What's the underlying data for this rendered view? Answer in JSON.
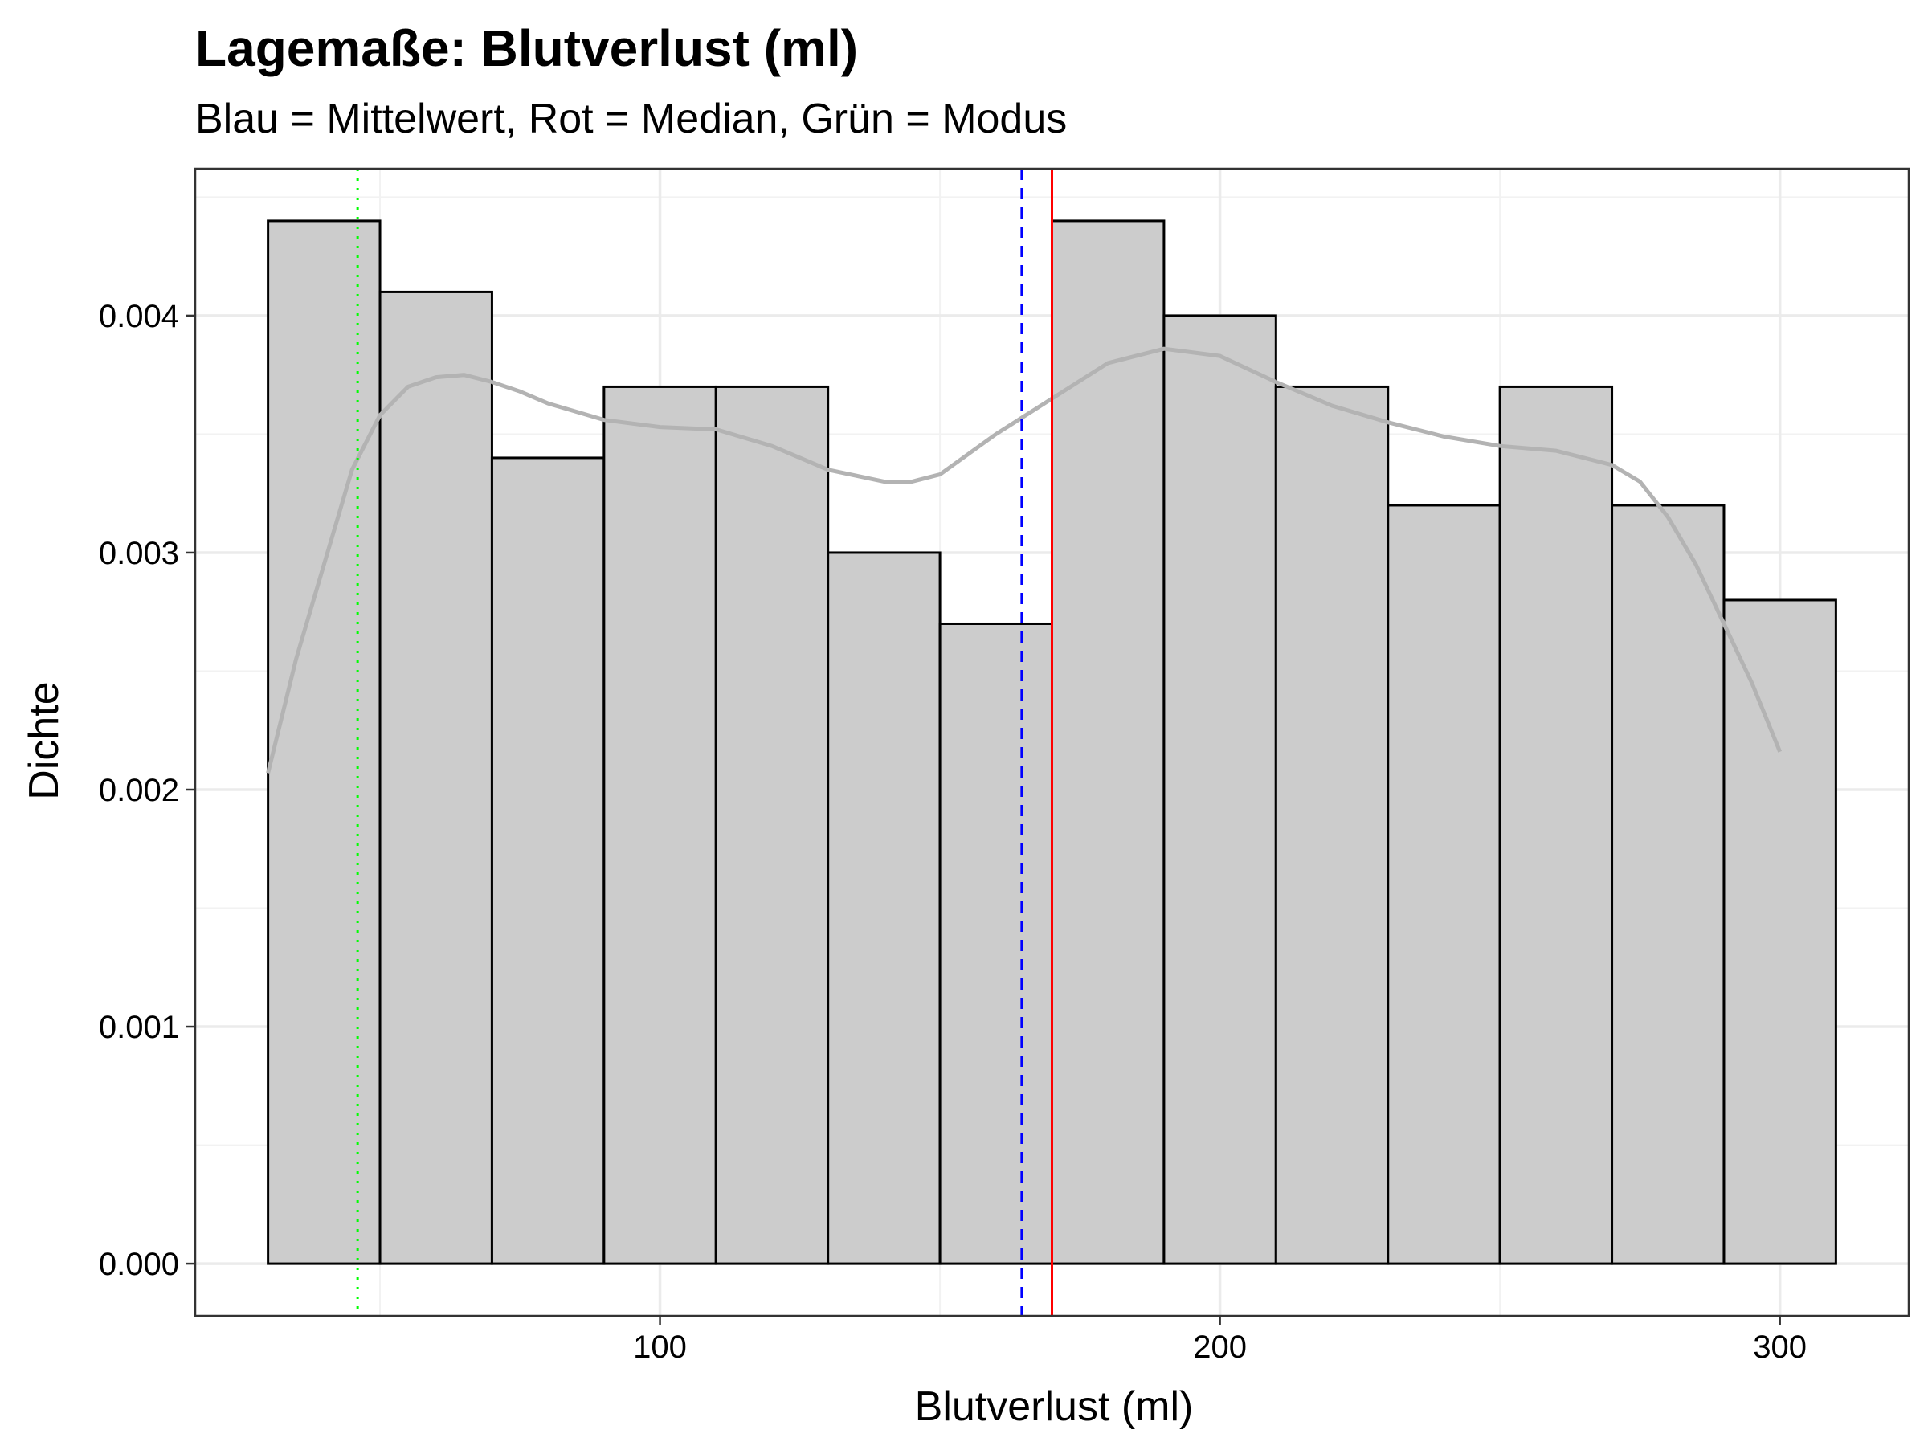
{
  "chart_data": {
    "type": "bar",
    "title": "Lagemaße: Blutverlust (ml)",
    "subtitle": "Blau = Mittelwert, Rot = Median, Grün = Modus",
    "xlabel": "Blutverlust (ml)",
    "ylabel": "Dichte",
    "xlim": [
      17,
      323
    ],
    "ylim": [
      -0.00022,
      0.00462
    ],
    "x_ticks": [
      100,
      200,
      300
    ],
    "x_tick_labels": [
      "100",
      "200",
      "300"
    ],
    "y_ticks": [
      0.0,
      0.001,
      0.002,
      0.003,
      0.004
    ],
    "y_tick_labels": [
      "0.000",
      "0.001",
      "0.002",
      "0.003",
      "0.004"
    ],
    "grid": true,
    "bins": [
      {
        "x0": 30,
        "x1": 50,
        "density": 0.0044
      },
      {
        "x0": 50,
        "x1": 70,
        "density": 0.0041
      },
      {
        "x0": 70,
        "x1": 90,
        "density": 0.0034
      },
      {
        "x0": 90,
        "x1": 110,
        "density": 0.0037
      },
      {
        "x0": 110,
        "x1": 130,
        "density": 0.0037
      },
      {
        "x0": 130,
        "x1": 150,
        "density": 0.003
      },
      {
        "x0": 150,
        "x1": 170,
        "density": 0.0027
      },
      {
        "x0": 170,
        "x1": 190,
        "density": 0.0044
      },
      {
        "x0": 190,
        "x1": 210,
        "density": 0.004
      },
      {
        "x0": 210,
        "x1": 230,
        "density": 0.0037
      },
      {
        "x0": 230,
        "x1": 250,
        "density": 0.0032
      },
      {
        "x0": 250,
        "x1": 270,
        "density": 0.0037
      },
      {
        "x0": 270,
        "x1": 290,
        "density": 0.0032
      },
      {
        "x0": 290,
        "x1": 310,
        "density": 0.0028
      }
    ],
    "density_curve": {
      "color": "#b3b3b3",
      "x": [
        30,
        35,
        40,
        45,
        50,
        55,
        60,
        65,
        70,
        75,
        80,
        90,
        100,
        110,
        120,
        130,
        140,
        145,
        150,
        160,
        170,
        180,
        190,
        200,
        210,
        220,
        230,
        240,
        250,
        260,
        270,
        275,
        280,
        285,
        290,
        295,
        300
      ],
      "y": [
        0.00207,
        0.00255,
        0.00295,
        0.00335,
        0.00358,
        0.0037,
        0.00374,
        0.00375,
        0.00372,
        0.00368,
        0.00363,
        0.00356,
        0.00353,
        0.00352,
        0.00345,
        0.00335,
        0.0033,
        0.0033,
        0.00333,
        0.0035,
        0.00365,
        0.0038,
        0.00386,
        0.00383,
        0.00372,
        0.00362,
        0.00355,
        0.00349,
        0.00345,
        0.00343,
        0.00337,
        0.0033,
        0.00315,
        0.00295,
        0.0027,
        0.00245,
        0.00216
      ]
    },
    "reference_lines": [
      {
        "name": "Mittelwert",
        "x": 164.6,
        "color": "#0000ff",
        "style": "dashed"
      },
      {
        "name": "Median",
        "x": 170,
        "color": "#ff0000",
        "style": "solid"
      },
      {
        "name": "Modus",
        "x": 46,
        "color": "#00ff00",
        "style": "dotted"
      }
    ],
    "bar_fill": "#cccccc",
    "bar_stroke": "#000000"
  }
}
